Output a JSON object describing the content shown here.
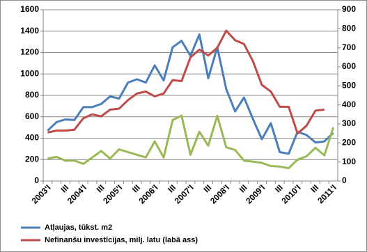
{
  "chart_data": {
    "type": "line",
    "categories": [
      "2003'I",
      null,
      "III",
      null,
      "2004'I",
      null,
      "III",
      null,
      "2005'I",
      null,
      "III",
      null,
      "2006'I",
      null,
      "III",
      null,
      "2007'I",
      null,
      "III",
      null,
      "2008'I",
      null,
      "III",
      null,
      "2009'I",
      null,
      "III",
      null,
      "2010'I",
      null,
      "III",
      null,
      "2011'I"
    ],
    "series": [
      {
        "name": "Atļaujas, tūkst. m2",
        "color": "#4a7ebb",
        "values": [
          470,
          550,
          575,
          570,
          690,
          690,
          720,
          790,
          770,
          920,
          950,
          920,
          1080,
          940,
          1250,
          1310,
          1170,
          1370,
          960,
          1250,
          860,
          650,
          780,
          580,
          390,
          540,
          270,
          255,
          460,
          430,
          360,
          370,
          450
        ]
      },
      {
        "name": "Nefinanšu investīcijas, milj. latu (labā ass)",
        "color": "#be4b48",
        "axis": "y2",
        "values": [
          255,
          265,
          265,
          270,
          330,
          350,
          340,
          375,
          380,
          425,
          460,
          470,
          445,
          460,
          530,
          525,
          650,
          690,
          660,
          700,
          790,
          740,
          720,
          630,
          505,
          470,
          390,
          390,
          250,
          290,
          370,
          375,
          null
        ]
      },
      {
        "color": "#98b954",
        "values": [
          210,
          225,
          190,
          190,
          160,
          220,
          280,
          210,
          295,
          270,
          245,
          220,
          370,
          220,
          570,
          610,
          245,
          460,
          330,
          610,
          315,
          290,
          190,
          180,
          170,
          140,
          135,
          120,
          200,
          230,
          310,
          240,
          500
        ]
      }
    ],
    "ylim": [
      0,
      1600
    ],
    "yticks": [
      0,
      200,
      400,
      600,
      800,
      1000,
      1200,
      1400,
      1600
    ],
    "y2lim": [
      0,
      900
    ],
    "y2ticks": [
      0,
      100,
      200,
      300,
      400,
      500,
      600,
      700,
      800,
      900
    ],
    "grid": true
  }
}
